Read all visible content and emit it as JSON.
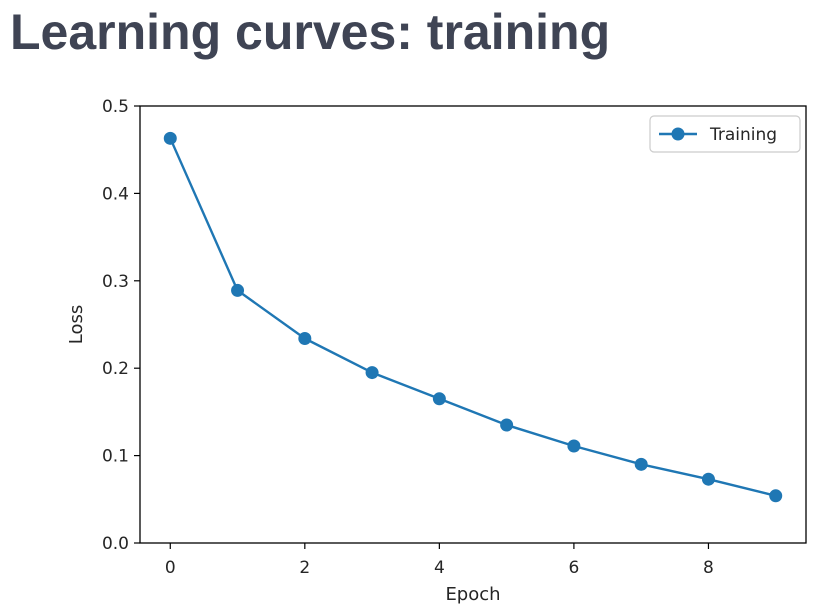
{
  "slide": {
    "title": "Learning curves: training"
  },
  "chart_data": {
    "type": "line",
    "title": "",
    "xlabel": "Epoch",
    "ylabel": "Loss",
    "xlim": [
      -0.45,
      9.45
    ],
    "ylim": [
      0.0,
      0.5
    ],
    "xticks": [
      0,
      2,
      4,
      6,
      8
    ],
    "yticks": [
      0.0,
      0.1,
      0.2,
      0.3,
      0.4,
      0.5
    ],
    "xtick_labels": [
      "0",
      "2",
      "4",
      "6",
      "8"
    ],
    "ytick_labels": [
      "0.0",
      "0.1",
      "0.2",
      "0.3",
      "0.4",
      "0.5"
    ],
    "grid": false,
    "legend_position": "top-right",
    "x": [
      0,
      1,
      2,
      3,
      4,
      5,
      6,
      7,
      8,
      9
    ],
    "series": [
      {
        "name": "Training",
        "color": "#1f77b4",
        "marker": "circle",
        "values": [
          0.463,
          0.289,
          0.234,
          0.195,
          0.165,
          0.135,
          0.111,
          0.09,
          0.073,
          0.054
        ]
      }
    ]
  }
}
